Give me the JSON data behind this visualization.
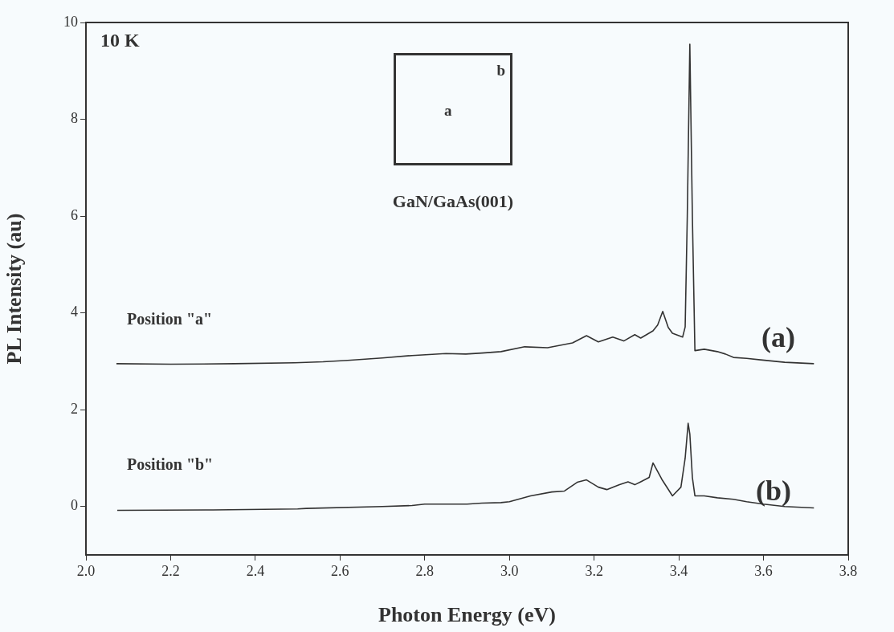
{
  "chart_data": {
    "type": "line",
    "xlabel": "Photon Energy (eV)",
    "ylabel": "PL Intensity (au)",
    "annotations": [
      "10 K",
      "b",
      "a",
      "GaN/GaAs(001)",
      "Position \"a\"",
      "(a)",
      "Position \"b\"",
      "(b)"
    ],
    "xlim": [
      2.0,
      3.8
    ],
    "xticks": [
      {
        "value": 2.0,
        "label": "2.0"
      },
      {
        "value": 2.2,
        "label": "2.2"
      },
      {
        "value": 2.4,
        "label": "2.4"
      },
      {
        "value": 2.6,
        "label": "2.6"
      },
      {
        "value": 2.8,
        "label": "2.8"
      },
      {
        "value": 3.0,
        "label": "3.0"
      },
      {
        "value": 3.2,
        "label": "3.2"
      },
      {
        "value": 3.4,
        "label": "3.4"
      },
      {
        "value": 3.6,
        "label": "3.6"
      },
      {
        "value": 3.8,
        "label": "3.8"
      }
    ],
    "ylim": [
      -1,
      10
    ],
    "yticks": [
      0,
      2,
      4,
      6,
      8,
      10
    ],
    "grid": false,
    "legend": false,
    "marker": "none",
    "line_style": "solid",
    "series": [
      {
        "color": "#333333",
        "x": [
          2.072,
          2.2,
          2.35,
          2.493,
          2.56,
          2.618,
          2.7,
          2.77,
          2.85,
          2.897,
          2.935,
          2.98,
          3.036,
          3.09,
          3.149,
          3.182,
          3.21,
          3.244,
          3.27,
          3.296,
          3.31,
          3.339,
          3.35,
          3.362,
          3.375,
          3.385,
          3.409,
          3.415,
          3.42,
          3.426,
          3.432,
          3.438,
          3.46,
          3.491,
          3.51,
          3.529,
          3.56,
          3.593,
          3.65,
          3.719
        ],
        "values": [
          2.95,
          2.94,
          2.95,
          2.97,
          2.99,
          3.02,
          3.07,
          3.12,
          3.16,
          3.15,
          3.17,
          3.2,
          3.3,
          3.28,
          3.38,
          3.53,
          3.4,
          3.5,
          3.42,
          3.55,
          3.48,
          3.63,
          3.75,
          4.03,
          3.7,
          3.58,
          3.5,
          3.71,
          6.0,
          9.55,
          6.0,
          3.22,
          3.25,
          3.2,
          3.15,
          3.08,
          3.06,
          3.03,
          2.98,
          2.95
        ]
      },
      {
        "color": "#333333",
        "x": [
          2.074,
          2.3,
          2.5,
          2.52,
          2.7,
          2.77,
          2.8,
          2.9,
          2.935,
          2.98,
          3.0,
          3.05,
          3.1,
          3.13,
          3.16,
          3.182,
          3.21,
          3.23,
          3.26,
          3.28,
          3.296,
          3.31,
          3.33,
          3.339,
          3.36,
          3.385,
          3.405,
          3.415,
          3.422,
          3.426,
          3.432,
          3.438,
          3.46,
          3.491,
          3.529,
          3.56,
          3.6,
          3.65,
          3.719
        ],
        "values": [
          -0.08,
          -0.07,
          -0.05,
          -0.04,
          0.0,
          0.02,
          0.05,
          0.05,
          0.07,
          0.08,
          0.1,
          0.22,
          0.3,
          0.32,
          0.5,
          0.55,
          0.4,
          0.35,
          0.45,
          0.51,
          0.45,
          0.51,
          0.6,
          0.9,
          0.56,
          0.22,
          0.4,
          1.0,
          1.72,
          1.5,
          0.6,
          0.22,
          0.22,
          0.18,
          0.15,
          0.1,
          0.05,
          0.0,
          -0.03
        ]
      }
    ]
  }
}
